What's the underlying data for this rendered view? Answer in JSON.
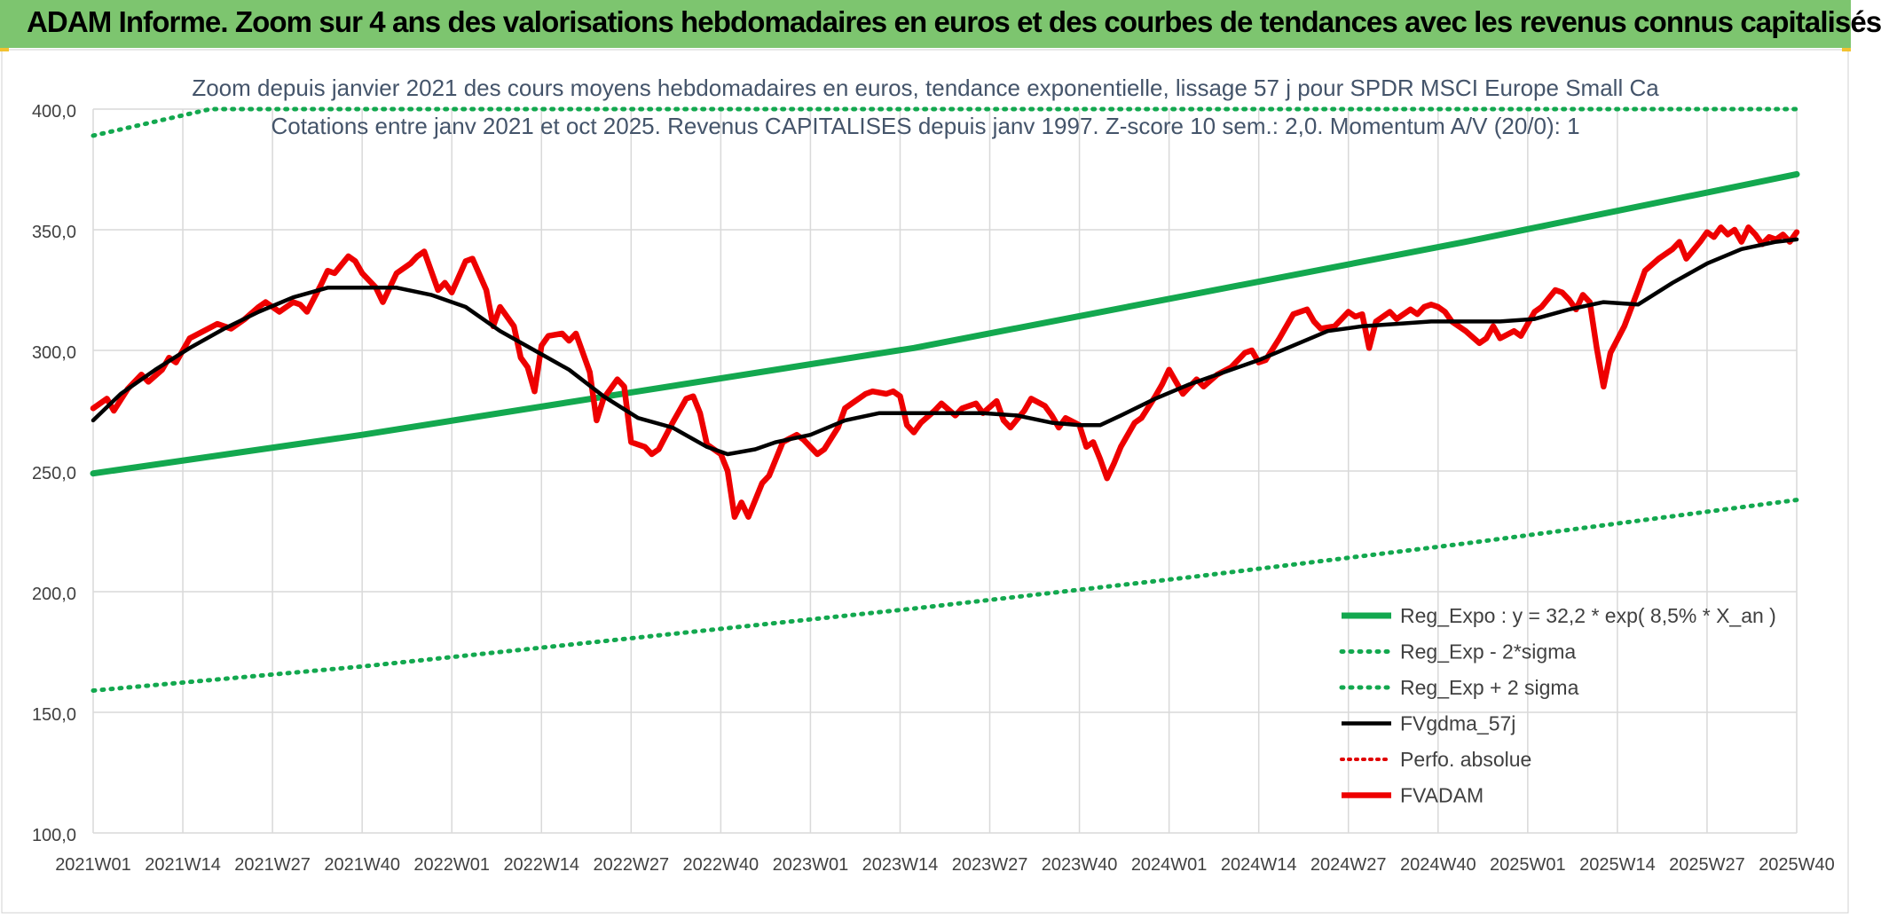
{
  "banner": {
    "title": "ADAM Informe. Zoom sur 4 ans des valorisations hebdomadaires en euros et des courbes de tendances avec les revenus connus capitalisés"
  },
  "colors": {
    "banner_bg": "#7dc56f",
    "reg_expo": "#13a84f",
    "band": "#13a84f",
    "fvgdma": "#000000",
    "perfo": "#e00000",
    "fvadam": "#ee0000",
    "grid": "#d9d9d9",
    "title_text": "#44546a",
    "axis_text": "#404040"
  },
  "chart_data": {
    "type": "line",
    "title_line1": "Zoom depuis janvier 2021 des cours moyens hebdomadaires en euros, tendance exponentielle, lissage 57 j pour SPDR MSCI Europe Small Ca",
    "title_line2": "Cotations entre janv 2021 et oct 2025. Revenus CAPITALISES depuis janv 1997. Z-score 10 sem.: 2,0. Momentum A/V (20/0): 1",
    "xlabel": "",
    "ylabel": "",
    "ylim": [
      100,
      400
    ],
    "yticks": [
      "100,0",
      "150,0",
      "200,0",
      "250,0",
      "300,0",
      "350,0",
      "400,0"
    ],
    "x_range": [
      1,
      248
    ],
    "x_ticks": [
      {
        "label": "2021W01",
        "x": 1
      },
      {
        "label": "2021W14",
        "x": 14
      },
      {
        "label": "2021W27",
        "x": 27
      },
      {
        "label": "2021W40",
        "x": 40
      },
      {
        "label": "2022W01",
        "x": 53
      },
      {
        "label": "2022W14",
        "x": 66
      },
      {
        "label": "2022W27",
        "x": 79
      },
      {
        "label": "2022W40",
        "x": 92
      },
      {
        "label": "2023W01",
        "x": 105
      },
      {
        "label": "2023W14",
        "x": 118
      },
      {
        "label": "2023W27",
        "x": 131
      },
      {
        "label": "2023W40",
        "x": 144
      },
      {
        "label": "2024W01",
        "x": 157
      },
      {
        "label": "2024W14",
        "x": 170
      },
      {
        "label": "2024W27",
        "x": 183
      },
      {
        "label": "2024W40",
        "x": 196
      },
      {
        "label": "2025W01",
        "x": 209
      },
      {
        "label": "2025W14",
        "x": 222
      },
      {
        "label": "2025W27",
        "x": 235
      },
      {
        "label": "2025W40",
        "x": 248
      }
    ],
    "grid": true,
    "legend_position": "bottom-right",
    "series": [
      {
        "name": "Reg_Expo : y = 32,2 * exp( 8,5% *  X_an )",
        "style": "solid-thick",
        "points": [
          [
            1,
            249
          ],
          [
            40,
            265
          ],
          [
            80,
            283
          ],
          [
            120,
            301
          ],
          [
            160,
            323
          ],
          [
            200,
            345
          ],
          [
            248,
            373
          ]
        ]
      },
      {
        "name": "Reg_Exp - 2*sigma",
        "style": "dotted",
        "points": [
          [
            1,
            159
          ],
          [
            40,
            169
          ],
          [
            80,
            181
          ],
          [
            120,
            193
          ],
          [
            160,
            206
          ],
          [
            200,
            220
          ],
          [
            248,
            238
          ]
        ]
      },
      {
        "name": "Reg_Exp + 2 sigma",
        "style": "dotted",
        "points": [
          [
            1,
            389
          ],
          [
            18,
            400
          ],
          [
            248,
            400
          ]
        ]
      },
      {
        "name": "FVgdma_57j",
        "style": "solid",
        "points": [
          [
            1,
            271
          ],
          [
            5,
            282
          ],
          [
            10,
            292
          ],
          [
            15,
            301
          ],
          [
            20,
            309
          ],
          [
            25,
            316
          ],
          [
            30,
            322
          ],
          [
            35,
            326
          ],
          [
            40,
            326
          ],
          [
            45,
            326
          ],
          [
            50,
            323
          ],
          [
            55,
            318
          ],
          [
            60,
            308
          ],
          [
            65,
            300
          ],
          [
            70,
            292
          ],
          [
            75,
            281
          ],
          [
            80,
            272
          ],
          [
            85,
            268
          ],
          [
            90,
            260
          ],
          [
            93,
            257
          ],
          [
            97,
            259
          ],
          [
            100,
            262
          ],
          [
            105,
            265
          ],
          [
            110,
            271
          ],
          [
            115,
            274
          ],
          [
            120,
            274
          ],
          [
            125,
            274
          ],
          [
            130,
            274
          ],
          [
            135,
            273
          ],
          [
            140,
            270
          ],
          [
            144,
            269
          ],
          [
            147,
            269
          ],
          [
            150,
            273
          ],
          [
            155,
            280
          ],
          [
            160,
            286
          ],
          [
            165,
            291
          ],
          [
            170,
            296
          ],
          [
            175,
            302
          ],
          [
            180,
            308
          ],
          [
            185,
            310
          ],
          [
            190,
            311
          ],
          [
            195,
            312
          ],
          [
            200,
            312
          ],
          [
            205,
            312
          ],
          [
            210,
            313
          ],
          [
            215,
            317
          ],
          [
            220,
            320
          ],
          [
            225,
            319
          ],
          [
            230,
            328
          ],
          [
            235,
            336
          ],
          [
            240,
            342
          ],
          [
            245,
            345
          ],
          [
            248,
            346
          ]
        ]
      },
      {
        "name": "Perfo. absolue",
        "style": "dotted",
        "points": []
      },
      {
        "name": "FVADAM",
        "style": "solid-thick",
        "points": [
          [
            1,
            276
          ],
          [
            3,
            280
          ],
          [
            4,
            275
          ],
          [
            6,
            284
          ],
          [
            8,
            290
          ],
          [
            9,
            287
          ],
          [
            11,
            292
          ],
          [
            12,
            297
          ],
          [
            13,
            295
          ],
          [
            15,
            305
          ],
          [
            17,
            308
          ],
          [
            19,
            311
          ],
          [
            21,
            309
          ],
          [
            23,
            313
          ],
          [
            25,
            318
          ],
          [
            26,
            320
          ],
          [
            28,
            316
          ],
          [
            30,
            320
          ],
          [
            31,
            319
          ],
          [
            32,
            316
          ],
          [
            34,
            327
          ],
          [
            35,
            333
          ],
          [
            36,
            332
          ],
          [
            38,
            339
          ],
          [
            39,
            337
          ],
          [
            40,
            332
          ],
          [
            42,
            326
          ],
          [
            43,
            320
          ],
          [
            45,
            332
          ],
          [
            47,
            336
          ],
          [
            48,
            339
          ],
          [
            49,
            341
          ],
          [
            51,
            325
          ],
          [
            52,
            328
          ],
          [
            53,
            324
          ],
          [
            55,
            337
          ],
          [
            56,
            338
          ],
          [
            58,
            325
          ],
          [
            59,
            310
          ],
          [
            60,
            318
          ],
          [
            62,
            310
          ],
          [
            63,
            297
          ],
          [
            64,
            293
          ],
          [
            65,
            283
          ],
          [
            66,
            302
          ],
          [
            67,
            306
          ],
          [
            69,
            307
          ],
          [
            70,
            304
          ],
          [
            71,
            307
          ],
          [
            73,
            291
          ],
          [
            74,
            271
          ],
          [
            75,
            280
          ],
          [
            77,
            288
          ],
          [
            78,
            285
          ],
          [
            79,
            262
          ],
          [
            81,
            260
          ],
          [
            82,
            257
          ],
          [
            83,
            259
          ],
          [
            85,
            270
          ],
          [
            87,
            280
          ],
          [
            88,
            281
          ],
          [
            89,
            274
          ],
          [
            90,
            261
          ],
          [
            92,
            257
          ],
          [
            93,
            250
          ],
          [
            94,
            231
          ],
          [
            95,
            237
          ],
          [
            96,
            231
          ],
          [
            98,
            245
          ],
          [
            99,
            248
          ],
          [
            101,
            262
          ],
          [
            103,
            265
          ],
          [
            104,
            263
          ],
          [
            106,
            257
          ],
          [
            107,
            259
          ],
          [
            109,
            268
          ],
          [
            110,
            276
          ],
          [
            111,
            278
          ],
          [
            113,
            282
          ],
          [
            114,
            283
          ],
          [
            116,
            282
          ],
          [
            117,
            283
          ],
          [
            118,
            281
          ],
          [
            119,
            269
          ],
          [
            120,
            266
          ],
          [
            121,
            270
          ],
          [
            123,
            275
          ],
          [
            124,
            278
          ],
          [
            126,
            273
          ],
          [
            127,
            276
          ],
          [
            129,
            278
          ],
          [
            130,
            274
          ],
          [
            132,
            279
          ],
          [
            133,
            271
          ],
          [
            134,
            268
          ],
          [
            136,
            275
          ],
          [
            137,
            280
          ],
          [
            139,
            277
          ],
          [
            140,
            273
          ],
          [
            141,
            268
          ],
          [
            142,
            272
          ],
          [
            144,
            269
          ],
          [
            145,
            260
          ],
          [
            146,
            262
          ],
          [
            147,
            255
          ],
          [
            148,
            247
          ],
          [
            149,
            253
          ],
          [
            150,
            260
          ],
          [
            152,
            270
          ],
          [
            153,
            272
          ],
          [
            155,
            281
          ],
          [
            156,
            286
          ],
          [
            157,
            292
          ],
          [
            158,
            287
          ],
          [
            159,
            282
          ],
          [
            160,
            285
          ],
          [
            161,
            288
          ],
          [
            162,
            285
          ],
          [
            164,
            290
          ],
          [
            166,
            293
          ],
          [
            167,
            296
          ],
          [
            168,
            299
          ],
          [
            169,
            300
          ],
          [
            170,
            295
          ],
          [
            171,
            296
          ],
          [
            173,
            305
          ],
          [
            175,
            315
          ],
          [
            177,
            317
          ],
          [
            178,
            312
          ],
          [
            179,
            309
          ],
          [
            181,
            310
          ],
          [
            182,
            313
          ],
          [
            183,
            316
          ],
          [
            184,
            314
          ],
          [
            185,
            315
          ],
          [
            186,
            301
          ],
          [
            187,
            312
          ],
          [
            189,
            316
          ],
          [
            190,
            313
          ],
          [
            192,
            317
          ],
          [
            193,
            315
          ],
          [
            194,
            318
          ],
          [
            195,
            319
          ],
          [
            196,
            318
          ],
          [
            197,
            316
          ],
          [
            198,
            312
          ],
          [
            200,
            308
          ],
          [
            202,
            303
          ],
          [
            203,
            305
          ],
          [
            204,
            310
          ],
          [
            205,
            305
          ],
          [
            207,
            308
          ],
          [
            208,
            306
          ],
          [
            210,
            316
          ],
          [
            211,
            318
          ],
          [
            213,
            325
          ],
          [
            214,
            324
          ],
          [
            215,
            321
          ],
          [
            216,
            317
          ],
          [
            217,
            323
          ],
          [
            218,
            320
          ],
          [
            219,
            301
          ],
          [
            220,
            285
          ],
          [
            221,
            299
          ],
          [
            223,
            310
          ],
          [
            225,
            325
          ],
          [
            226,
            333
          ],
          [
            228,
            338
          ],
          [
            230,
            342
          ],
          [
            231,
            345
          ],
          [
            232,
            338
          ],
          [
            234,
            345
          ],
          [
            235,
            349
          ],
          [
            236,
            347
          ],
          [
            237,
            351
          ],
          [
            238,
            348
          ],
          [
            239,
            350
          ],
          [
            240,
            345
          ],
          [
            241,
            351
          ],
          [
            242,
            348
          ],
          [
            243,
            344
          ],
          [
            244,
            347
          ],
          [
            245,
            346
          ],
          [
            246,
            348
          ],
          [
            247,
            345
          ],
          [
            248,
            349
          ]
        ]
      }
    ]
  }
}
